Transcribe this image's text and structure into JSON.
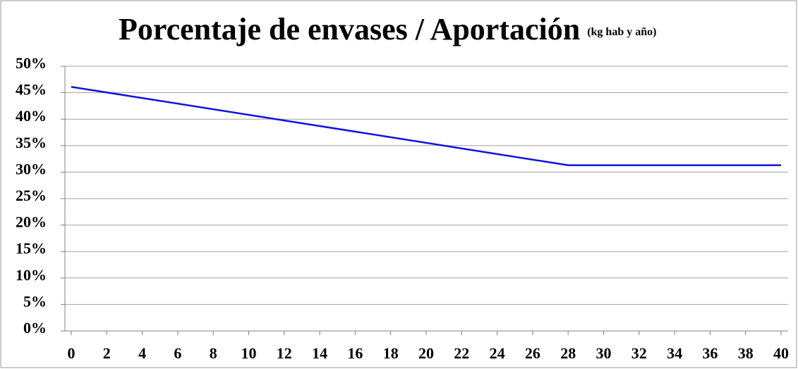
{
  "chart_data": {
    "type": "line",
    "title": "Porcentaje de envases / Aportación",
    "title_note": "(kg hab y año)",
    "x": [
      0,
      28,
      40
    ],
    "series": [
      {
        "name": "Porcentaje de envases",
        "color": "#1010e0",
        "values": [
          46.1,
          31.3,
          31.3
        ]
      }
    ],
    "xlim": [
      0,
      40
    ],
    "xticks": [
      0,
      2,
      4,
      6,
      8,
      10,
      12,
      14,
      16,
      18,
      20,
      22,
      24,
      26,
      28,
      30,
      32,
      34,
      36,
      38,
      40
    ],
    "ylim": [
      0,
      50
    ],
    "yticks": [
      {
        "value": 0,
        "label": "0%"
      },
      {
        "value": 5,
        "label": "5%"
      },
      {
        "value": 10,
        "label": "10%"
      },
      {
        "value": 15,
        "label": "15%"
      },
      {
        "value": 20,
        "label": "20%"
      },
      {
        "value": 25,
        "label": "25%"
      },
      {
        "value": 30,
        "label": "30%"
      },
      {
        "value": 35,
        "label": "35%"
      },
      {
        "value": 40,
        "label": "40%"
      },
      {
        "value": 45,
        "label": "45%"
      },
      {
        "value": 50,
        "label": "50%"
      }
    ],
    "grid": true
  }
}
